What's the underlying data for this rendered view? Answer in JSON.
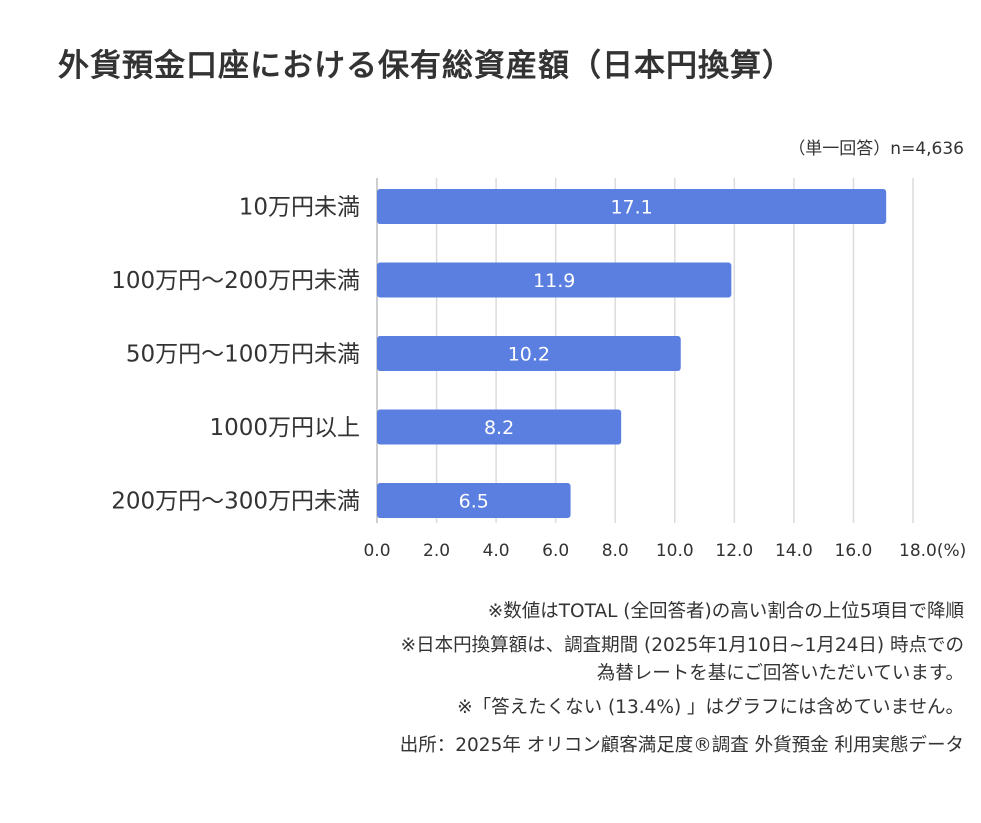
{
  "title": "外貨預金口座における保有総資産額（日本円換算）",
  "sample_note": "（単一回答）n=4,636",
  "chart_data": {
    "type": "bar",
    "orientation": "horizontal",
    "categories": [
      "10万円未満",
      "100万円〜200万円未満",
      "50万円〜100万円未満",
      "1000万円以上",
      "200万円〜300万円未満"
    ],
    "values": [
      17.1,
      11.9,
      10.2,
      8.2,
      6.5
    ],
    "value_labels": [
      "17.1",
      "11.9",
      "10.2",
      "8.2",
      "6.5"
    ],
    "xlim": [
      0,
      18
    ],
    "ticks": [
      "0.0",
      "2.0",
      "4.0",
      "6.0",
      "8.0",
      "10.0",
      "12.0",
      "14.0",
      "16.0",
      "18.0(%)"
    ],
    "bar_color": "#5b7fe0",
    "grid": true
  },
  "notes": {
    "line1": "※数値はTOTAL (全回答者)の高い割合の上位5項目で降順",
    "line2": "※日本円換算額は、調査期間 (2025年1月10日~1月24日) 時点での",
    "line3": "為替レートを基にご回答いただいています。",
    "line4": "※「答えたくない (13.4%) 」はグラフには含めていません。",
    "source": "出所：2025年 オリコン顧客満足度®調査 外貨預金 利用実態データ"
  }
}
